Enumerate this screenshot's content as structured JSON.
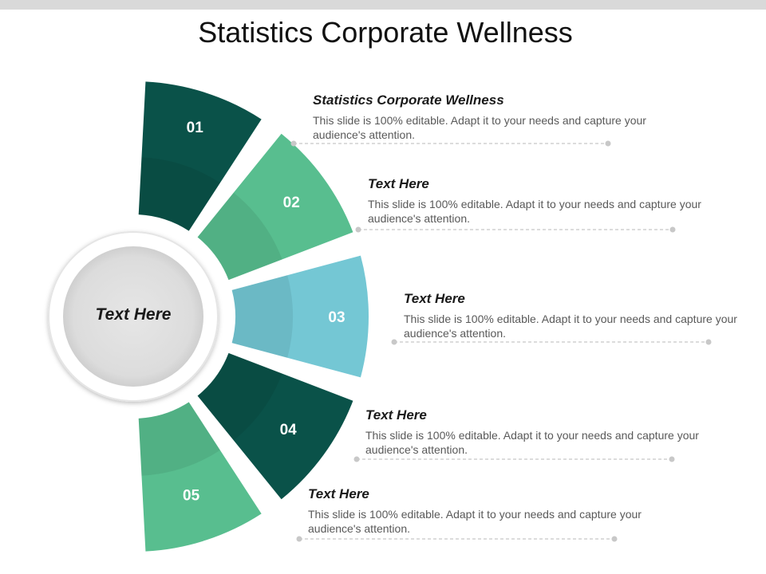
{
  "title": "Statistics Corporate Wellness",
  "center": {
    "label": "Text Here"
  },
  "colors": {
    "dark_green": "#0a5249",
    "mid_green": "#58be8f",
    "light_blue": "#74c7d4",
    "hub": "#e1e1e1",
    "divider": "#c8c8c8"
  },
  "segments": [
    {
      "number": "01",
      "color": "#0a5249",
      "heading": "Statistics Corporate Wellness",
      "text": "This slide is 100% editable. Adapt it to your needs and capture your audience's attention."
    },
    {
      "number": "02",
      "color": "#58be8f",
      "heading": "Text Here",
      "text": "This slide is 100% editable. Adapt it to your needs and capture your audience's attention."
    },
    {
      "number": "03",
      "color": "#74c7d4",
      "heading": "Text Here",
      "text": "This slide is 100% editable. Adapt it to your needs and capture your audience's attention."
    },
    {
      "number": "04",
      "color": "#0a5249",
      "heading": "Text Here",
      "text": "This slide is 100% editable. Adapt it to your needs and capture your audience's attention."
    },
    {
      "number": "05",
      "color": "#58be8f",
      "heading": "Text Here",
      "text": "This slide is 100% editable. Adapt it to your needs and capture your audience's attention."
    }
  ]
}
